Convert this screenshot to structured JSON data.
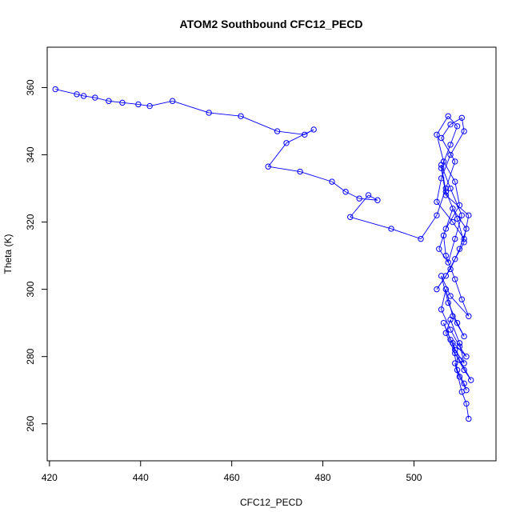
{
  "chart_data": {
    "type": "scatter",
    "title": "ATOM2 Southbound CFC12_PECD",
    "xlabel": "CFC12_PECD",
    "ylabel": "Theta (K)",
    "xlim": [
      419.5,
      518
    ],
    "ylim": [
      249,
      372
    ],
    "x_ticks": [
      420,
      440,
      460,
      480,
      500
    ],
    "y_ticks": [
      260,
      280,
      300,
      320,
      340,
      360
    ],
    "grid": false,
    "legend": "none",
    "marker": "open-circle",
    "connected": true,
    "color": "#0000ff",
    "series": [
      {
        "x": [
          421.3,
          426.0,
          427.5,
          430.0,
          433.0,
          436.0,
          439.5,
          442.0,
          447.0,
          455.0,
          462.0,
          470.0,
          476.0,
          478.0,
          472.0,
          468.0,
          475.0,
          482.0,
          485.0,
          488.0,
          492.0,
          490.0,
          486.0,
          495.0,
          501.5,
          505.0,
          507.0,
          509.0,
          506.0,
          508.0,
          510.5,
          511.0,
          508.0,
          506.0,
          505.0,
          508.5,
          511.0,
          512.0,
          507.0,
          506.0,
          508.0,
          509.5,
          507.5,
          505.0,
          506.5,
          509.0,
          510.0,
          507.0,
          505.5,
          507.5,
          509.0,
          510.5,
          508.0,
          506.0,
          507.0,
          509.5,
          511.0,
          509.0,
          507.0,
          505.0,
          508.0,
          510.0,
          511.5,
          508.5,
          506.5,
          507.0,
          509.0,
          510.5,
          512.0,
          508.0,
          506.0,
          507.5,
          509.5,
          511.0,
          508.5,
          507.0,
          506.0,
          508.0,
          510.0,
          511.5,
          508.0,
          506.5,
          509.0,
          511.0,
          510.0,
          508.0,
          507.0,
          509.0,
          511.0,
          512.5,
          510.0,
          508.5,
          509.5,
          511.0,
          511.5,
          510.0,
          509.0,
          510.5,
          511.5,
          512.0
        ],
        "y": [
          359.5,
          358.0,
          357.5,
          357.0,
          356.0,
          355.5,
          355.0,
          354.5,
          356.0,
          352.5,
          351.5,
          347.0,
          346.0,
          347.5,
          343.5,
          336.5,
          335.0,
          332.0,
          329.0,
          327.0,
          326.5,
          328.0,
          321.5,
          318.0,
          315.0,
          322.0,
          330.0,
          338.0,
          345.0,
          349.0,
          351.0,
          347.0,
          340.0,
          333.0,
          326.0,
          320.0,
          315.0,
          322.0,
          328.0,
          336.0,
          343.0,
          348.5,
          351.5,
          346.0,
          338.0,
          332.0,
          325.0,
          318.0,
          312.0,
          308.0,
          315.0,
          322.0,
          330.0,
          337.0,
          329.0,
          321.0,
          314.0,
          309.0,
          304.0,
          300.0,
          306.0,
          312.0,
          318.0,
          324.0,
          316.0,
          310.0,
          303.0,
          297.0,
          292.0,
          298.0,
          304.0,
          296.0,
          290.0,
          286.0,
          292.0,
          300.0,
          294.0,
          288.0,
          283.0,
          280.0,
          285.0,
          290.0,
          282.0,
          278.0,
          284.0,
          291.0,
          287.0,
          281.0,
          276.0,
          273.0,
          279.0,
          284.0,
          276.0,
          272.0,
          270.0,
          274.0,
          278.0,
          269.5,
          266.0,
          261.5
        ]
      }
    ]
  }
}
